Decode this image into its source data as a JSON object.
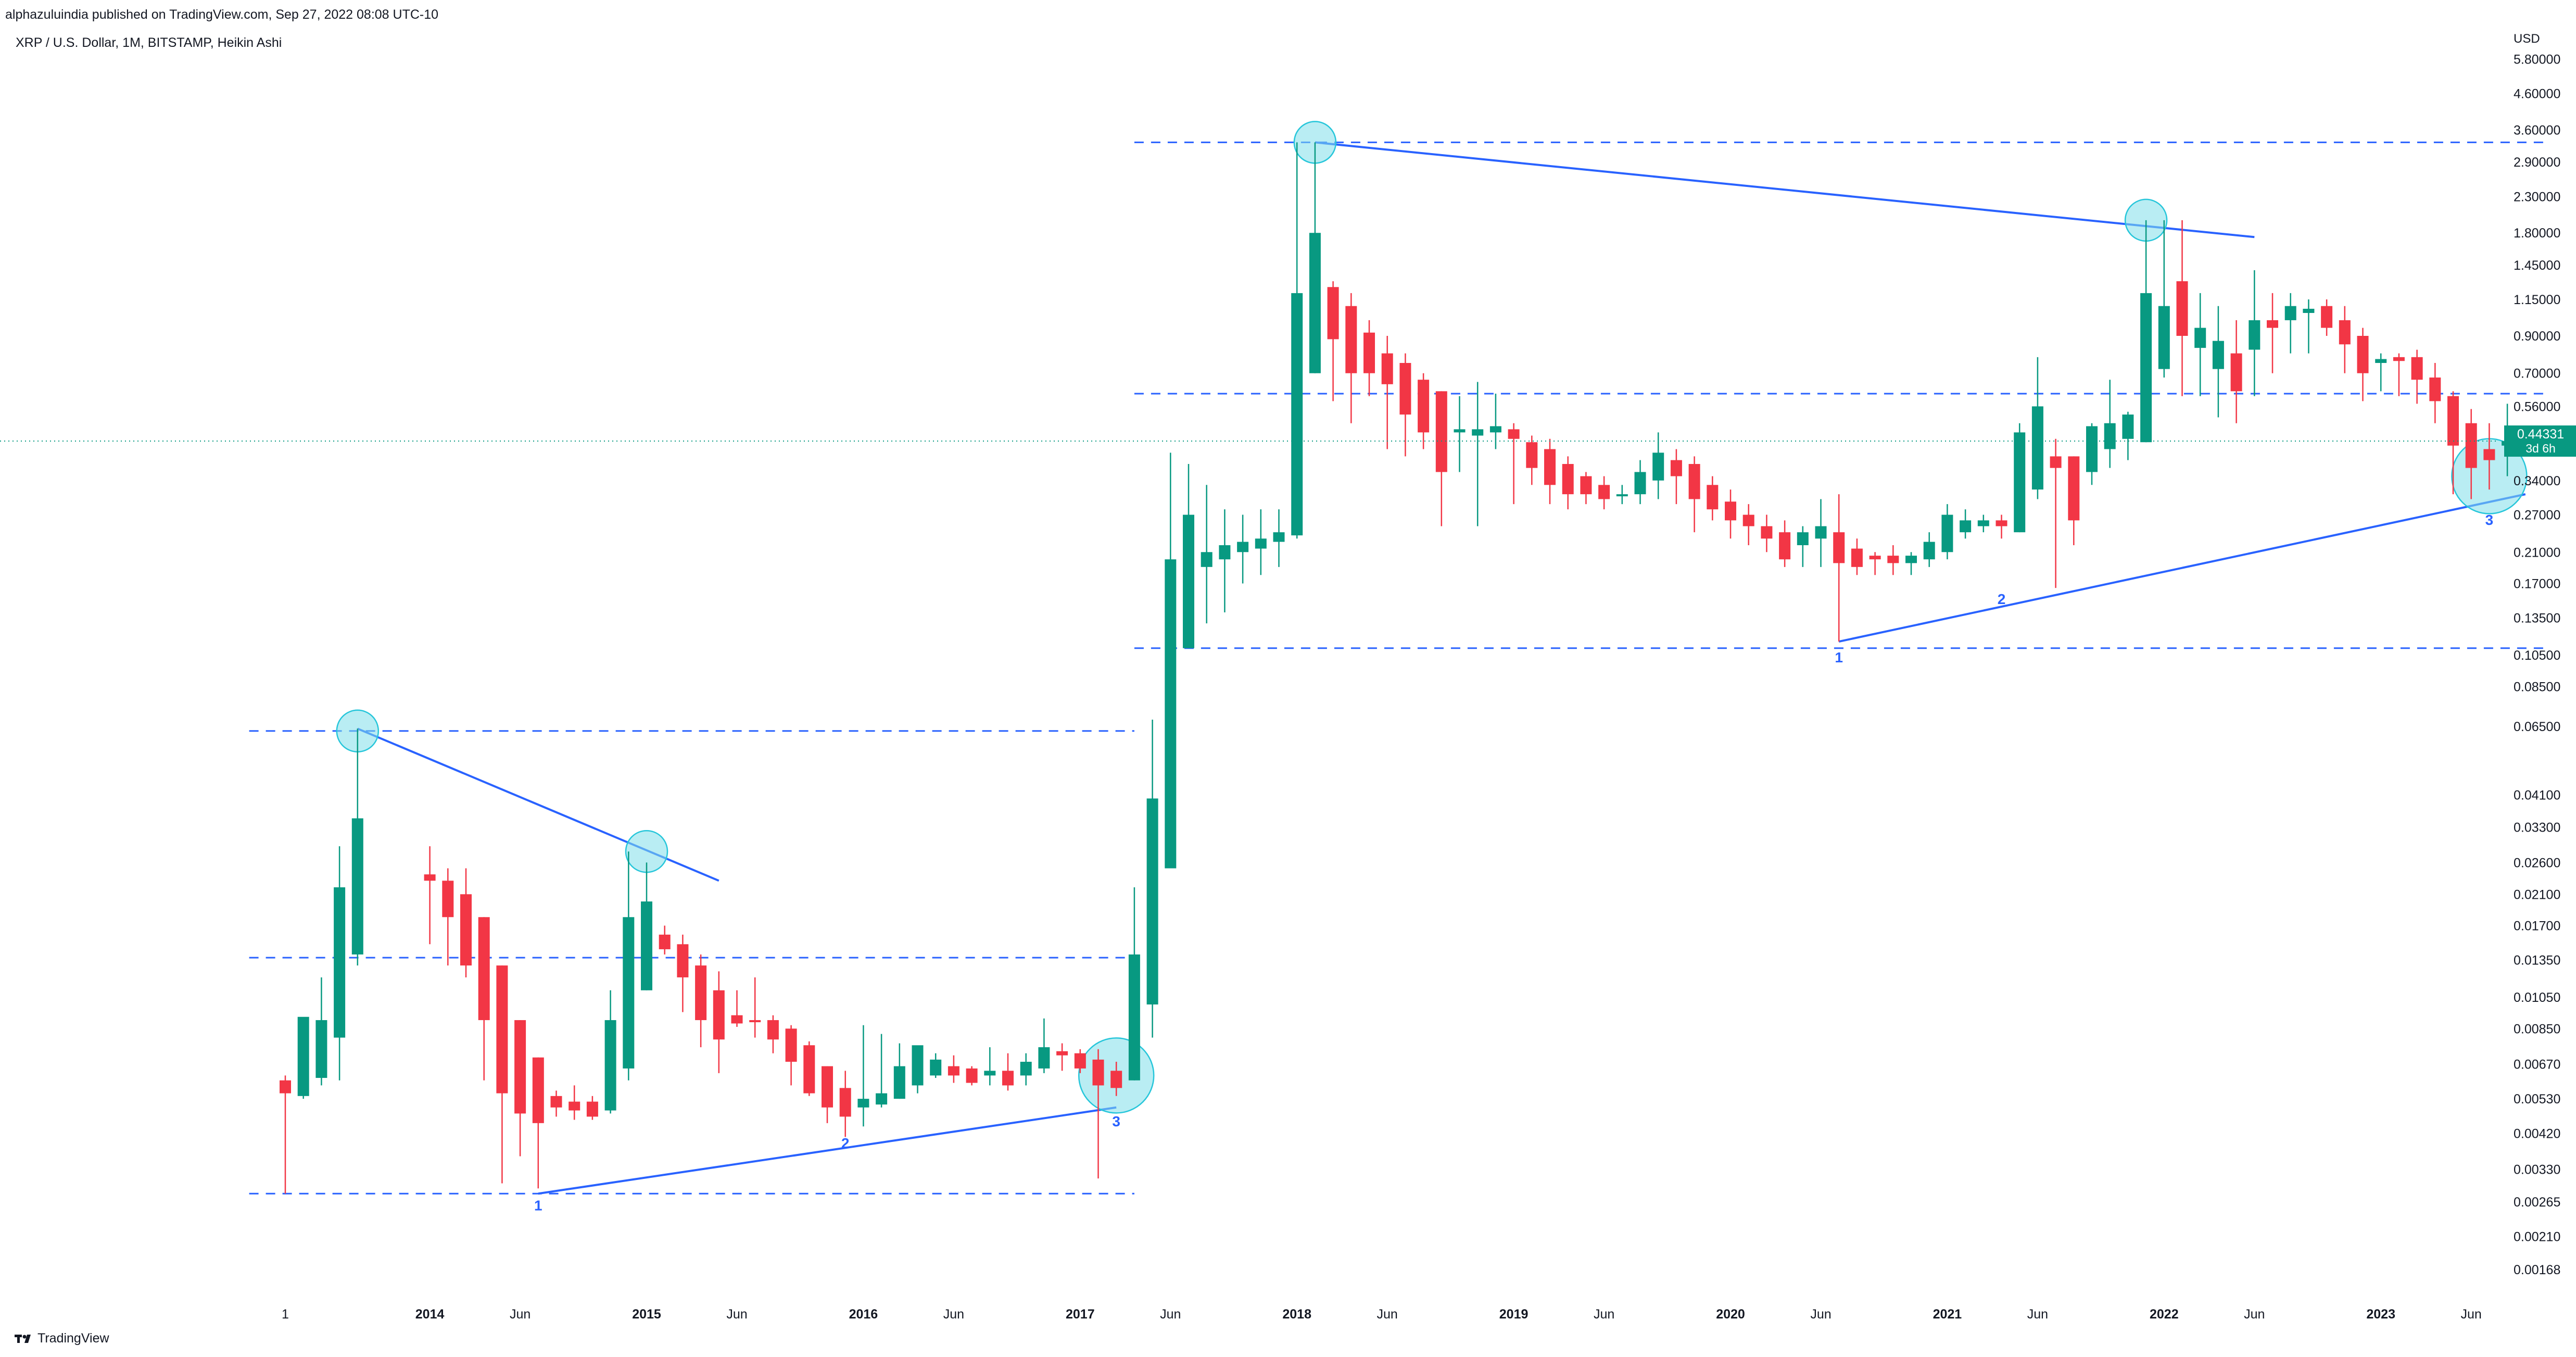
{
  "header": {
    "publisher_line": "alphazuluindia published on TradingView.com, Sep 27, 2022 08:08 UTC-10",
    "symbol_line": "XRP / U.S. Dollar, 1M, BITSTAMP, Heikin Ashi"
  },
  "footer": {
    "brand": "TradingView"
  },
  "colors": {
    "up": "#089981",
    "down": "#f23645",
    "trendline": "#2962ff",
    "level": "#2962ff",
    "circle_fill": "#7fdfea",
    "circle_stroke": "#26c6da",
    "price_line": "#089981",
    "axis_text": "#131722"
  },
  "chart_data": {
    "type": "candlestick",
    "style": "Heikin Ashi",
    "timeframe": "1M",
    "exchange": "BITSTAMP",
    "scale": "log",
    "currency_label": "USD",
    "x_range": [
      "2013-05",
      "2023-08"
    ],
    "y_range": [
      0.0014,
      7.5
    ],
    "x_ticks": [
      {
        "date": "2013-05",
        "label": "1"
      },
      {
        "date": "2014-01",
        "label": "2014"
      },
      {
        "date": "2014-06",
        "label": "Jun"
      },
      {
        "date": "2015-01",
        "label": "2015"
      },
      {
        "date": "2015-06",
        "label": "Jun"
      },
      {
        "date": "2016-01",
        "label": "2016"
      },
      {
        "date": "2016-06",
        "label": "Jun"
      },
      {
        "date": "2017-01",
        "label": "2017"
      },
      {
        "date": "2017-06",
        "label": "Jun"
      },
      {
        "date": "2018-01",
        "label": "2018"
      },
      {
        "date": "2018-06",
        "label": "Jun"
      },
      {
        "date": "2019-01",
        "label": "2019"
      },
      {
        "date": "2019-06",
        "label": "Jun"
      },
      {
        "date": "2020-01",
        "label": "2020"
      },
      {
        "date": "2020-06",
        "label": "Jun"
      },
      {
        "date": "2021-01",
        "label": "2021"
      },
      {
        "date": "2021-06",
        "label": "Jun"
      },
      {
        "date": "2022-01",
        "label": "2022"
      },
      {
        "date": "2022-06",
        "label": "Jun"
      },
      {
        "date": "2023-01",
        "label": "2023"
      },
      {
        "date": "2023-06",
        "label": "Jun"
      }
    ],
    "y_ticks": [
      "5.80000",
      "4.60000",
      "3.60000",
      "2.90000",
      "2.30000",
      "1.80000",
      "1.45000",
      "1.15000",
      "0.90000",
      "0.70000",
      "0.56000",
      "0.34000",
      "0.27000",
      "0.21000",
      "0.17000",
      "0.13500",
      "0.10500",
      "0.08500",
      "0.06500",
      "0.04100",
      "0.03300",
      "0.02600",
      "0.02100",
      "0.01700",
      "0.01350",
      "0.01050",
      "0.00850",
      "0.00670",
      "0.00530",
      "0.00420",
      "0.00330",
      "0.00265",
      "0.00210",
      "0.00168"
    ],
    "last_price": {
      "value": 0.44331,
      "label": "0.44331",
      "countdown": "3d 6h"
    },
    "candles": [
      {
        "d": "2013-05",
        "o": 0.006,
        "h": 0.0062,
        "l": 0.0028,
        "c": 0.0055
      },
      {
        "d": "2013-06",
        "o": 0.0054,
        "h": 0.009,
        "l": 0.0053,
        "c": 0.0092
      },
      {
        "d": "2013-07",
        "o": 0.0061,
        "h": 0.012,
        "l": 0.0058,
        "c": 0.009
      },
      {
        "d": "2013-08",
        "o": 0.008,
        "h": 0.029,
        "l": 0.006,
        "c": 0.022
      },
      {
        "d": "2013-09",
        "o": 0.014,
        "h": 0.064,
        "l": 0.013,
        "c": 0.035
      },
      {
        "d": "2014-01",
        "o": 0.024,
        "h": 0.029,
        "l": 0.015,
        "c": 0.023
      },
      {
        "d": "2014-02",
        "o": 0.023,
        "h": 0.025,
        "l": 0.013,
        "c": 0.018
      },
      {
        "d": "2014-03",
        "o": 0.021,
        "h": 0.025,
        "l": 0.012,
        "c": 0.013
      },
      {
        "d": "2014-04",
        "o": 0.018,
        "h": 0.018,
        "l": 0.006,
        "c": 0.009
      },
      {
        "d": "2014-05",
        "o": 0.013,
        "h": 0.013,
        "l": 0.003,
        "c": 0.0055
      },
      {
        "d": "2014-06",
        "o": 0.009,
        "h": 0.009,
        "l": 0.0036,
        "c": 0.0048
      },
      {
        "d": "2014-07",
        "o": 0.007,
        "h": 0.007,
        "l": 0.0029,
        "c": 0.0045
      },
      {
        "d": "2014-08",
        "o": 0.0054,
        "h": 0.0056,
        "l": 0.0047,
        "c": 0.005
      },
      {
        "d": "2014-09",
        "o": 0.0052,
        "h": 0.0058,
        "l": 0.0046,
        "c": 0.0049
      },
      {
        "d": "2014-10",
        "o": 0.0052,
        "h": 0.0054,
        "l": 0.0046,
        "c": 0.0047
      },
      {
        "d": "2014-11",
        "o": 0.0049,
        "h": 0.011,
        "l": 0.0048,
        "c": 0.009
      },
      {
        "d": "2014-12",
        "o": 0.0065,
        "h": 0.028,
        "l": 0.006,
        "c": 0.018
      },
      {
        "d": "2015-01",
        "o": 0.011,
        "h": 0.026,
        "l": 0.011,
        "c": 0.02
      },
      {
        "d": "2015-02",
        "o": 0.016,
        "h": 0.017,
        "l": 0.014,
        "c": 0.0145
      },
      {
        "d": "2015-03",
        "o": 0.015,
        "h": 0.016,
        "l": 0.0095,
        "c": 0.012
      },
      {
        "d": "2015-04",
        "o": 0.013,
        "h": 0.014,
        "l": 0.0075,
        "c": 0.009
      },
      {
        "d": "2015-05",
        "o": 0.011,
        "h": 0.0125,
        "l": 0.0063,
        "c": 0.0079
      },
      {
        "d": "2015-06",
        "o": 0.0093,
        "h": 0.011,
        "l": 0.0086,
        "c": 0.0088
      },
      {
        "d": "2015-07",
        "o": 0.009,
        "h": 0.012,
        "l": 0.008,
        "c": 0.0089
      },
      {
        "d": "2015-08",
        "o": 0.009,
        "h": 0.0093,
        "l": 0.0072,
        "c": 0.0079
      },
      {
        "d": "2015-09",
        "o": 0.0085,
        "h": 0.0087,
        "l": 0.0058,
        "c": 0.0068
      },
      {
        "d": "2015-10",
        "o": 0.0076,
        "h": 0.0078,
        "l": 0.0054,
        "c": 0.0055
      },
      {
        "d": "2015-11",
        "o": 0.0066,
        "h": 0.0066,
        "l": 0.0045,
        "c": 0.005
      },
      {
        "d": "2015-12",
        "o": 0.0057,
        "h": 0.0064,
        "l": 0.0041,
        "c": 0.0047
      },
      {
        "d": "2016-01",
        "o": 0.005,
        "h": 0.0087,
        "l": 0.0044,
        "c": 0.0053
      },
      {
        "d": "2016-02",
        "o": 0.0051,
        "h": 0.0082,
        "l": 0.005,
        "c": 0.0055
      },
      {
        "d": "2016-03",
        "o": 0.0053,
        "h": 0.0077,
        "l": 0.0053,
        "c": 0.0066
      },
      {
        "d": "2016-04",
        "o": 0.0058,
        "h": 0.0075,
        "l": 0.0055,
        "c": 0.0076
      },
      {
        "d": "2016-05",
        "o": 0.0062,
        "h": 0.0072,
        "l": 0.0061,
        "c": 0.0069
      },
      {
        "d": "2016-06",
        "o": 0.0066,
        "h": 0.0071,
        "l": 0.0059,
        "c": 0.0062
      },
      {
        "d": "2016-07",
        "o": 0.0065,
        "h": 0.0066,
        "l": 0.0058,
        "c": 0.0059
      },
      {
        "d": "2016-08",
        "o": 0.0062,
        "h": 0.0075,
        "l": 0.0058,
        "c": 0.0064
      },
      {
        "d": "2016-09",
        "o": 0.0064,
        "h": 0.0072,
        "l": 0.0056,
        "c": 0.0058
      },
      {
        "d": "2016-10",
        "o": 0.0062,
        "h": 0.0072,
        "l": 0.0058,
        "c": 0.0068
      },
      {
        "d": "2016-11",
        "o": 0.0065,
        "h": 0.0091,
        "l": 0.0063,
        "c": 0.0075
      },
      {
        "d": "2016-12",
        "o": 0.0073,
        "h": 0.0077,
        "l": 0.0064,
        "c": 0.0071
      },
      {
        "d": "2017-01",
        "o": 0.0072,
        "h": 0.0074,
        "l": 0.0063,
        "c": 0.0065
      },
      {
        "d": "2017-02",
        "o": 0.0069,
        "h": 0.0074,
        "l": 0.0031,
        "c": 0.0058
      },
      {
        "d": "2017-03",
        "o": 0.0064,
        "h": 0.0068,
        "l": 0.0054,
        "c": 0.0057
      },
      {
        "d": "2017-04",
        "o": 0.006,
        "h": 0.022,
        "l": 0.006,
        "c": 0.014
      },
      {
        "d": "2017-05",
        "o": 0.01,
        "h": 0.068,
        "l": 0.008,
        "c": 0.04
      },
      {
        "d": "2017-06",
        "o": 0.025,
        "h": 0.41,
        "l": 0.025,
        "c": 0.2
      },
      {
        "d": "2017-07",
        "o": 0.11,
        "h": 0.38,
        "l": 0.11,
        "c": 0.27
      },
      {
        "d": "2017-08",
        "o": 0.19,
        "h": 0.33,
        "l": 0.13,
        "c": 0.21
      },
      {
        "d": "2017-09",
        "o": 0.2,
        "h": 0.28,
        "l": 0.14,
        "c": 0.22
      },
      {
        "d": "2017-10",
        "o": 0.21,
        "h": 0.27,
        "l": 0.17,
        "c": 0.225
      },
      {
        "d": "2017-11",
        "o": 0.215,
        "h": 0.28,
        "l": 0.18,
        "c": 0.23
      },
      {
        "d": "2017-12",
        "o": 0.225,
        "h": 0.28,
        "l": 0.19,
        "c": 0.24
      },
      {
        "d": "2018-01",
        "o": 0.235,
        "h": 3.31,
        "l": 0.23,
        "c": 1.2
      },
      {
        "d": "2018-02",
        "o": 0.7,
        "h": 3.31,
        "l": 0.7,
        "c": 1.8
      },
      {
        "d": "2018-03",
        "o": 1.25,
        "h": 1.3,
        "l": 0.58,
        "c": 0.88
      },
      {
        "d": "2018-04",
        "o": 1.1,
        "h": 1.2,
        "l": 0.5,
        "c": 0.7
      },
      {
        "d": "2018-05",
        "o": 0.92,
        "h": 1.0,
        "l": 0.6,
        "c": 0.7
      },
      {
        "d": "2018-06",
        "o": 0.8,
        "h": 0.9,
        "l": 0.42,
        "c": 0.65
      },
      {
        "d": "2018-07",
        "o": 0.75,
        "h": 0.8,
        "l": 0.4,
        "c": 0.53
      },
      {
        "d": "2018-08",
        "o": 0.67,
        "h": 0.7,
        "l": 0.42,
        "c": 0.47
      },
      {
        "d": "2018-09",
        "o": 0.62,
        "h": 0.62,
        "l": 0.25,
        "c": 0.36
      },
      {
        "d": "2018-10",
        "o": 0.47,
        "h": 0.6,
        "l": 0.36,
        "c": 0.48
      },
      {
        "d": "2018-11",
        "o": 0.46,
        "h": 0.66,
        "l": 0.25,
        "c": 0.48
      },
      {
        "d": "2018-12",
        "o": 0.47,
        "h": 0.61,
        "l": 0.42,
        "c": 0.49
      },
      {
        "d": "2019-01",
        "o": 0.48,
        "h": 0.5,
        "l": 0.29,
        "c": 0.45
      },
      {
        "d": "2019-02",
        "o": 0.44,
        "h": 0.46,
        "l": 0.33,
        "c": 0.37
      },
      {
        "d": "2019-03",
        "o": 0.42,
        "h": 0.45,
        "l": 0.29,
        "c": 0.33
      },
      {
        "d": "2019-04",
        "o": 0.38,
        "h": 0.4,
        "l": 0.28,
        "c": 0.31
      },
      {
        "d": "2019-05",
        "o": 0.35,
        "h": 0.36,
        "l": 0.29,
        "c": 0.31
      },
      {
        "d": "2019-06",
        "o": 0.33,
        "h": 0.35,
        "l": 0.28,
        "c": 0.3
      },
      {
        "d": "2019-07",
        "o": 0.31,
        "h": 0.33,
        "l": 0.29,
        "c": 0.31
      },
      {
        "d": "2019-08",
        "o": 0.31,
        "h": 0.39,
        "l": 0.29,
        "c": 0.36
      },
      {
        "d": "2019-09",
        "o": 0.34,
        "h": 0.47,
        "l": 0.3,
        "c": 0.41
      },
      {
        "d": "2019-10",
        "o": 0.39,
        "h": 0.42,
        "l": 0.29,
        "c": 0.35
      },
      {
        "d": "2019-11",
        "o": 0.38,
        "h": 0.4,
        "l": 0.24,
        "c": 0.3
      },
      {
        "d": "2019-12",
        "o": 0.33,
        "h": 0.35,
        "l": 0.26,
        "c": 0.28
      },
      {
        "d": "2020-01",
        "o": 0.295,
        "h": 0.32,
        "l": 0.23,
        "c": 0.26
      },
      {
        "d": "2020-02",
        "o": 0.27,
        "h": 0.29,
        "l": 0.22,
        "c": 0.25
      },
      {
        "d": "2020-03",
        "o": 0.25,
        "h": 0.27,
        "l": 0.21,
        "c": 0.23
      },
      {
        "d": "2020-04",
        "o": 0.24,
        "h": 0.26,
        "l": 0.19,
        "c": 0.2
      },
      {
        "d": "2020-05",
        "o": 0.22,
        "h": 0.25,
        "l": 0.19,
        "c": 0.24
      },
      {
        "d": "2020-06",
        "o": 0.23,
        "h": 0.3,
        "l": 0.19,
        "c": 0.25
      },
      {
        "d": "2020-07",
        "o": 0.24,
        "h": 0.31,
        "l": 0.115,
        "c": 0.195
      },
      {
        "d": "2020-08",
        "o": 0.215,
        "h": 0.23,
        "l": 0.18,
        "c": 0.19
      },
      {
        "d": "2020-09",
        "o": 0.205,
        "h": 0.21,
        "l": 0.18,
        "c": 0.2
      },
      {
        "d": "2020-10",
        "o": 0.205,
        "h": 0.22,
        "l": 0.18,
        "c": 0.195
      },
      {
        "d": "2020-11",
        "o": 0.195,
        "h": 0.21,
        "l": 0.18,
        "c": 0.205
      },
      {
        "d": "2020-12",
        "o": 0.2,
        "h": 0.24,
        "l": 0.19,
        "c": 0.225
      },
      {
        "d": "2021-01",
        "o": 0.21,
        "h": 0.29,
        "l": 0.2,
        "c": 0.27
      },
      {
        "d": "2021-02",
        "o": 0.24,
        "h": 0.28,
        "l": 0.23,
        "c": 0.26
      },
      {
        "d": "2021-03",
        "o": 0.25,
        "h": 0.27,
        "l": 0.24,
        "c": 0.26
      },
      {
        "d": "2021-04",
        "o": 0.26,
        "h": 0.27,
        "l": 0.23,
        "c": 0.25
      },
      {
        "d": "2021-05",
        "o": 0.24,
        "h": 0.5,
        "l": 0.24,
        "c": 0.47
      },
      {
        "d": "2021-06",
        "o": 0.32,
        "h": 0.78,
        "l": 0.3,
        "c": 0.56
      },
      {
        "d": "2021-07",
        "o": 0.4,
        "h": 0.45,
        "l": 0.165,
        "c": 0.37
      },
      {
        "d": "2021-08",
        "o": 0.4,
        "h": 0.4,
        "l": 0.22,
        "c": 0.26
      },
      {
        "d": "2021-09",
        "o": 0.36,
        "h": 0.5,
        "l": 0.33,
        "c": 0.49
      },
      {
        "d": "2021-10",
        "o": 0.42,
        "h": 0.67,
        "l": 0.37,
        "c": 0.5
      },
      {
        "d": "2021-11",
        "o": 0.45,
        "h": 0.54,
        "l": 0.39,
        "c": 0.53
      },
      {
        "d": "2021-12",
        "o": 0.44,
        "h": 1.96,
        "l": 0.44,
        "c": 1.2
      },
      {
        "d": "2022-01",
        "o": 0.72,
        "h": 1.96,
        "l": 0.68,
        "c": 1.1
      },
      {
        "d": "2022-02",
        "o": 1.3,
        "h": 1.96,
        "l": 0.6,
        "c": 0.9
      },
      {
        "d": "2022-03",
        "o": 0.83,
        "h": 1.2,
        "l": 0.6,
        "c": 0.95
      },
      {
        "d": "2022-04",
        "o": 0.72,
        "h": 1.1,
        "l": 0.52,
        "c": 0.87
      },
      {
        "d": "2022-05",
        "o": 0.8,
        "h": 1.0,
        "l": 0.5,
        "c": 0.62
      },
      {
        "d": "2022-06",
        "o": 0.82,
        "h": 1.4,
        "l": 0.6,
        "c": 1.0
      },
      {
        "d": "2022-07",
        "o": 1.0,
        "h": 1.2,
        "l": 0.7,
        "c": 0.95
      },
      {
        "d": "2022-08",
        "o": 1.0,
        "h": 1.2,
        "l": 0.8,
        "c": 1.1
      },
      {
        "d": "2022-09",
        "o": 1.05,
        "h": 1.15,
        "l": 0.8,
        "c": 1.08
      },
      {
        "d": "2022-10",
        "o": 1.1,
        "h": 1.15,
        "l": 0.9,
        "c": 0.95
      },
      {
        "d": "2022-11",
        "o": 1.0,
        "h": 1.1,
        "l": 0.7,
        "c": 0.85
      },
      {
        "d": "2022-12",
        "o": 0.9,
        "h": 0.95,
        "l": 0.58,
        "c": 0.7
      },
      {
        "d": "2023-01",
        "o": 0.75,
        "h": 0.8,
        "l": 0.62,
        "c": 0.77
      },
      {
        "d": "2023-02",
        "o": 0.78,
        "h": 0.8,
        "l": 0.6,
        "c": 0.76
      },
      {
        "d": "2023-03",
        "o": 0.78,
        "h": 0.82,
        "l": 0.57,
        "c": 0.67
      },
      {
        "d": "2023-04",
        "o": 0.68,
        "h": 0.75,
        "l": 0.5,
        "c": 0.58
      },
      {
        "d": "2023-05",
        "o": 0.6,
        "h": 0.62,
        "l": 0.31,
        "c": 0.43
      },
      {
        "d": "2023-06",
        "o": 0.5,
        "h": 0.55,
        "l": 0.3,
        "c": 0.37
      },
      {
        "d": "2023-07",
        "o": 0.42,
        "h": 0.5,
        "l": 0.32,
        "c": 0.39
      },
      {
        "d": "2023-08",
        "o": 0.43,
        "h": 0.57,
        "l": 0.35,
        "c": 0.4433
      }
    ],
    "horizontal_levels": [
      {
        "from": "2013-03",
        "to": "2017-04",
        "price": 0.0028
      },
      {
        "from": "2013-03",
        "to": "2017-04",
        "price": 0.0137
      },
      {
        "from": "2013-03",
        "to": "2017-04",
        "price": 0.063
      },
      {
        "from": "2017-04",
        "to": "2023-10",
        "price": 0.11
      },
      {
        "from": "2017-04",
        "to": "2023-10",
        "price": 0.61
      },
      {
        "from": "2017-04",
        "to": "2023-10",
        "price": 3.31
      }
    ],
    "trendlines": [
      {
        "from": [
          "2013-09",
          0.064
        ],
        "to": [
          "2015-05",
          0.023
        ]
      },
      {
        "from": [
          "2014-07",
          0.0028
        ],
        "to": [
          "2017-03",
          0.005
        ]
      },
      {
        "from": [
          "2018-02",
          3.31
        ],
        "to": [
          "2022-06",
          1.75
        ]
      },
      {
        "from": [
          "2020-07",
          0.115
        ],
        "to": [
          "2023-09",
          0.31
        ]
      }
    ],
    "highlight_circles": [
      {
        "d": "2013-09",
        "price": 0.063
      },
      {
        "d": "2015-01",
        "price": 0.028
      },
      {
        "d": "2017-03",
        "price": 0.0062
      },
      {
        "d": "2018-02",
        "price": 3.31
      },
      {
        "d": "2021-12",
        "price": 1.96
      },
      {
        "d": "2023-07",
        "price": 0.35
      }
    ],
    "wave_labels": [
      {
        "d": "2014-07",
        "price": 0.0025,
        "text": "1"
      },
      {
        "d": "2015-12",
        "price": 0.0038,
        "text": "2"
      },
      {
        "d": "2017-03",
        "price": 0.0044,
        "text": "3"
      },
      {
        "d": "2020-07",
        "price": 0.1,
        "text": "1"
      },
      {
        "d": "2021-04",
        "price": 0.148,
        "text": "2"
      },
      {
        "d": "2023-07",
        "price": 0.252,
        "text": "3"
      }
    ]
  }
}
